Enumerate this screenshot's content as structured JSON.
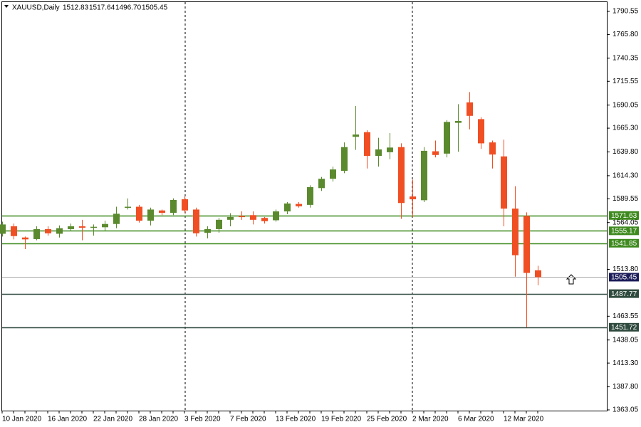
{
  "chart_data": {
    "type": "candlestick",
    "title": "XAUUSD,Daily",
    "ohlc_readout": [
      "1512.83",
      "1517.64",
      "1496.70",
      "1505.45"
    ],
    "categories": [
      "10 Jan 2020",
      null,
      null,
      null,
      "16 Jan 2020",
      null,
      null,
      null,
      "22 Jan 2020",
      null,
      null,
      null,
      "28 Jan 2020",
      null,
      null,
      null,
      "3 Feb 2020",
      null,
      null,
      null,
      "7 Feb 2020",
      null,
      null,
      null,
      "13 Feb 2020",
      null,
      null,
      null,
      "19 Feb 2020",
      null,
      null,
      null,
      "25 Feb 2020",
      null,
      null,
      null,
      "2 Mar 2020",
      null,
      null,
      null,
      "6 Mar 2020",
      null,
      null,
      null,
      "12 Mar 2020",
      null,
      null,
      null
    ],
    "open": [
      1552,
      1560,
      1548,
      1546.3,
      1557,
      1552,
      1557,
      1560,
      1559,
      1559,
      1562.5,
      1580,
      1581,
      1566,
      1577,
      1574.5,
      1589,
      1578,
      1553,
      1557,
      1567,
      1571,
      1572,
      1569,
      1566.5,
      1576,
      1584,
      1583,
      1601,
      1611,
      1619.5,
      1656,
      1661,
      1635.5,
      1639.5,
      1645,
      1592,
      1588,
      1640.5,
      1638,
      1671,
      1693,
      1675,
      1650,
      1635,
      1579,
      1571,
      1512.83
    ],
    "high": [
      1565,
      1563,
      1549,
      1560,
      1560,
      1561,
      1563,
      1567,
      1562,
      1566,
      1581,
      1590,
      1583,
      1580,
      1578,
      1590,
      1592,
      1580,
      1560,
      1569,
      1574,
      1576,
      1576,
      1570,
      1578,
      1586,
      1586,
      1604,
      1613,
      1624,
      1650,
      1689,
      1663,
      1655,
      1660,
      1649,
      1610,
      1645,
      1652,
      1674,
      1691,
      1704,
      1677,
      1652,
      1653,
      1603,
      1575,
      1517.64
    ],
    "low": [
      1549,
      1546,
      1535.6,
      1545,
      1550,
      1548,
      1555,
      1545,
      1550,
      1555,
      1558,
      1578,
      1564,
      1561,
      1572,
      1572,
      1574,
      1549,
      1547,
      1553,
      1560,
      1567,
      1562,
      1563,
      1565,
      1573,
      1580,
      1580,
      1598,
      1608,
      1617,
      1642,
      1622,
      1624,
      1632,
      1568,
      1570,
      1586,
      1634,
      1634,
      1640,
      1664,
      1643,
      1622,
      1560,
      1506,
      1451.72,
      1496.7
    ],
    "close": [
      1562,
      1549.5,
      1546,
      1557,
      1552.5,
      1558,
      1560,
      1558.5,
      1559.5,
      1562.5,
      1573.5,
      1581,
      1566,
      1578,
      1574.5,
      1588.3,
      1577,
      1552.5,
      1557,
      1567,
      1570,
      1570,
      1567,
      1565.5,
      1576,
      1584.5,
      1581.5,
      1602,
      1611,
      1621,
      1645,
      1658.5,
      1635.5,
      1642.5,
      1644.5,
      1585,
      1589,
      1641,
      1636.5,
      1672,
      1673,
      1678.5,
      1649,
      1637,
      1579,
      1529,
      1510,
      1505.45
    ],
    "up_color": "#5b8a2e",
    "down_color": "#f04e23",
    "ylim": [
      1361.5,
      1800.5
    ],
    "yticks": [
      1790.55,
      {
        "value": 1765.8,
        "label": "1765.80"
      },
      1740.35,
      1715.55,
      1690.05,
      {
        "value": 1665.3,
        "label": "1665.30"
      },
      {
        "value": 1639.8,
        "label": "1639.80"
      },
      {
        "value": 1614.3,
        "label": "1614.30"
      },
      1589.55,
      1564.05,
      {
        "value": 1513.8,
        "label": "1513.80"
      },
      1463.55,
      1438.05,
      {
        "value": 1413.3,
        "label": "1413.30"
      },
      {
        "value": 1387.8,
        "label": "1387.80"
      },
      1363.05
    ],
    "levels": [
      {
        "value": 1571.63,
        "line_color": "#3e8a1e",
        "label_color": "#3e8a1e"
      },
      {
        "value": 1555.17,
        "line_color": "#3e8a1e",
        "label_color": "#3e8a1e"
      },
      {
        "value": 1541.85,
        "line_color": "#3e8a1e",
        "label_color": "#3e8a1e"
      },
      {
        "value": 1505.45,
        "line_color": "#a8a8a8",
        "label_color": "#1c1c5a"
      },
      {
        "value": 1487.77,
        "line_color": "#2f4a3e",
        "label_color": "#2f4a3e"
      },
      {
        "value": 1451.72,
        "line_color": "#2f4a3e",
        "label_color": "#2f4a3e"
      }
    ]
  }
}
